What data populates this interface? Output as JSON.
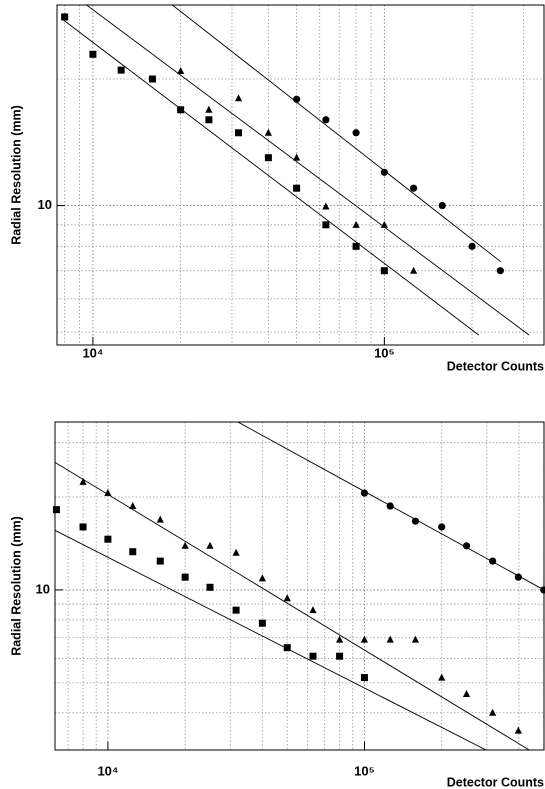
{
  "chart_data": [
    {
      "type": "scatter",
      "log_x": true,
      "log_y": true,
      "grid": true,
      "x_label": "Detector Counts",
      "y_label": "Radial Resolution (mm)",
      "xlim": [
        7530,
        353000
      ],
      "ylim": [
        4.66,
        30
      ],
      "xticks": [
        {
          "value": 10000,
          "label": "10⁴"
        },
        {
          "value": 100000,
          "label": "10⁵"
        }
      ],
      "yticks": [
        10
      ],
      "series": [
        {
          "marker": "square",
          "color": "#000000",
          "x": [
            8000,
            10000,
            12500,
            16000,
            20000,
            25000,
            31600,
            40000,
            50000,
            63000,
            80000,
            100000
          ],
          "values": [
            28.1,
            22.9,
            21.0,
            20.0,
            16.9,
            16.0,
            14.9,
            13.0,
            11.0,
            9.0,
            8.0,
            7.0
          ]
        },
        {
          "marker": "triangle",
          "color": "#000000",
          "x": [
            20000,
            25000,
            31600,
            40000,
            50000,
            63000,
            80000,
            100000,
            126000
          ],
          "values": [
            20.9,
            16.9,
            18.0,
            14.9,
            13.0,
            9.95,
            9.0,
            9.0,
            7.0
          ]
        },
        {
          "marker": "circle",
          "color": "#000000",
          "x": [
            50000,
            63000,
            80000,
            100000,
            126000,
            158000,
            200000,
            250000
          ],
          "values": [
            17.9,
            16.0,
            14.9,
            12.0,
            11.0,
            10.0,
            8.0,
            7.0
          ]
        }
      ],
      "fit_lines": [
        {
          "color": "#000000",
          "x": [
            18500,
            251000
          ],
          "values": [
            30.2,
            7.35
          ]
        },
        {
          "color": "#000000",
          "x": [
            9390,
            314000
          ],
          "values": [
            30.2,
            4.92
          ]
        },
        {
          "color": "#000000",
          "x": [
            7830,
            211000
          ],
          "values": [
            27.8,
            4.92
          ]
        }
      ]
    },
    {
      "type": "scatter",
      "log_x": true,
      "log_y": true,
      "grid": true,
      "x_label": "Detector Counts",
      "y_label": "Radial Resolution (mm)",
      "xlim": [
        6220,
        501000
      ],
      "ylim": [
        3.03,
        35
      ],
      "xticks": [
        {
          "value": 10000,
          "label": "10⁴"
        },
        {
          "value": 100000,
          "label": "10⁵"
        }
      ],
      "yticks": [
        10
      ],
      "series": [
        {
          "marker": "square",
          "color": "#000000",
          "x": [
            6300,
            8000,
            10000,
            12500,
            16000,
            20000,
            25000,
            31600,
            40000,
            50000,
            63000,
            80000,
            100000
          ],
          "values": [
            18.2,
            16.0,
            14.6,
            13.3,
            12.4,
            11.0,
            10.2,
            8.6,
            7.8,
            6.5,
            6.1,
            6.1,
            5.2
          ]
        },
        {
          "marker": "triangle",
          "color": "#000000",
          "x": [
            8000,
            10000,
            12500,
            16000,
            20000,
            25000,
            31600,
            40000,
            50000,
            63000,
            80000,
            100000,
            126000,
            158000,
            200000,
            250000,
            316000,
            398000
          ],
          "values": [
            22.4,
            20.6,
            18.7,
            16.9,
            13.9,
            13.9,
            13.2,
            10.9,
            9.4,
            8.6,
            6.9,
            6.9,
            6.9,
            6.9,
            5.2,
            4.6,
            4.0,
            3.5
          ]
        },
        {
          "marker": "circle",
          "color": "#000000",
          "x": [
            100000,
            126000,
            158000,
            200000,
            250000,
            316000,
            398000,
            500000
          ],
          "values": [
            20.6,
            18.7,
            16.7,
            16.0,
            13.9,
            12.4,
            11.0,
            10.0
          ]
        }
      ],
      "fit_lines": [
        {
          "color": "#000000",
          "x": [
            32100,
            501000
          ],
          "values": [
            35.0,
            10.0
          ]
        },
        {
          "color": "#000000",
          "x": [
            6220,
            439000
          ],
          "values": [
            25.9,
            3.03
          ]
        },
        {
          "color": "#000000",
          "x": [
            6220,
            298000
          ],
          "values": [
            15.6,
            3.03
          ]
        }
      ]
    }
  ]
}
